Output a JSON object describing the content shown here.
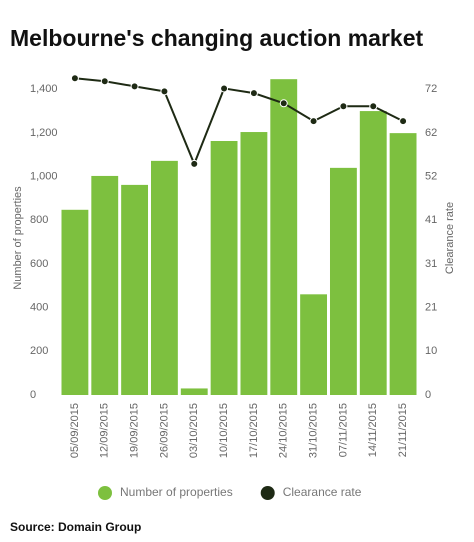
{
  "chart_data": {
    "type": "bar-line",
    "title": "Melbourne's changing auction market",
    "source": "Source: Domain Group",
    "y_label": "Number of properties",
    "y2_label": "Clearance rate",
    "categories": [
      "05/09/2015",
      "12/09/2015",
      "19/09/2015",
      "26/09/2015",
      "03/10/2015",
      "10/10/2015",
      "17/10/2015",
      "24/10/2015",
      "31/10/2015",
      "07/11/2015",
      "14/11/2015",
      "21/11/2015"
    ],
    "series": [
      {
        "name": "Number of properties",
        "color": "#7dc03f",
        "kind": "bar",
        "values": [
          848,
          1003,
          962,
          1072,
          30,
          1163,
          1204,
          1446,
          461,
          1040,
          1300,
          1199
        ]
      },
      {
        "name": "Clearance rate",
        "color": "#1e2a14",
        "kind": "line",
        "axis": "y2",
        "values": [
          74.7,
          74.0,
          72.8,
          71.6,
          54.5,
          72.3,
          71.2,
          68.8,
          64.6,
          68.1,
          68.1,
          64.6
        ]
      }
    ],
    "ylim": [
      0,
      1456
    ],
    "yticks": [
      0,
      200,
      400,
      600,
      800,
      {
        "value": 1000,
        "label": "1,000"
      },
      {
        "value": 1200,
        "label": "1,200"
      },
      {
        "value": 1400,
        "label": "1,400"
      }
    ],
    "y2lim": [
      0,
      75
    ],
    "y2ticks": [
      0,
      {
        "value": 10.3,
        "label": "10"
      },
      {
        "value": 20.6,
        "label": "21"
      },
      {
        "value": 30.9,
        "label": "31"
      },
      {
        "value": 41.2,
        "label": "41"
      },
      {
        "value": 51.5,
        "label": "52"
      },
      {
        "value": 61.8,
        "label": "62"
      },
      {
        "value": 72.1,
        "label": "72"
      }
    ],
    "grid": false
  }
}
